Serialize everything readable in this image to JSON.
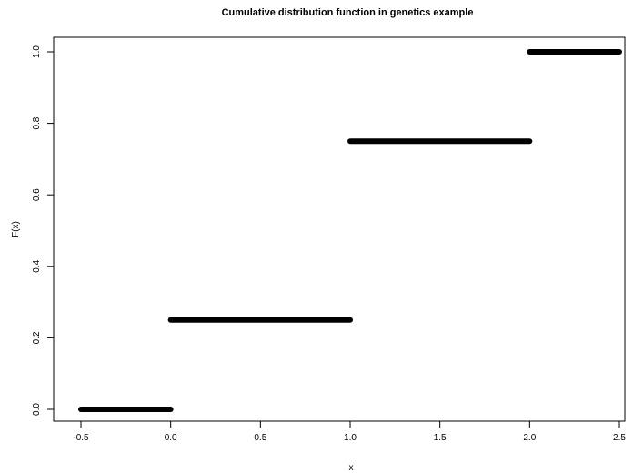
{
  "chart_data": {
    "type": "line",
    "title": "Cumulative distribution function in genetics example",
    "xlabel": "x",
    "ylabel": "F(x)",
    "xlim": [
      -0.5,
      2.5
    ],
    "ylim": [
      0.0,
      1.0
    ],
    "x_ticks": [
      -0.5,
      0.0,
      0.5,
      1.0,
      1.5,
      2.0,
      2.5
    ],
    "x_tick_labels": [
      "-0.5",
      "0.0",
      "0.5",
      "1.0",
      "1.5",
      "2.0",
      "2.5"
    ],
    "y_ticks": [
      0.0,
      0.2,
      0.4,
      0.6,
      0.8,
      1.0
    ],
    "y_tick_labels": [
      "0.0",
      "0.2",
      "0.4",
      "0.6",
      "0.8",
      "1.0"
    ],
    "grid": false,
    "series": [
      {
        "segments": [
          {
            "x_start": -0.5,
            "x_end": 0.0,
            "y": 0.0
          },
          {
            "x_start": 0.0,
            "x_end": 1.0,
            "y": 0.25
          },
          {
            "x_start": 1.0,
            "x_end": 2.0,
            "y": 0.75
          },
          {
            "x_start": 2.0,
            "x_end": 2.5,
            "y": 1.0
          }
        ]
      }
    ],
    "color": "#000000"
  }
}
